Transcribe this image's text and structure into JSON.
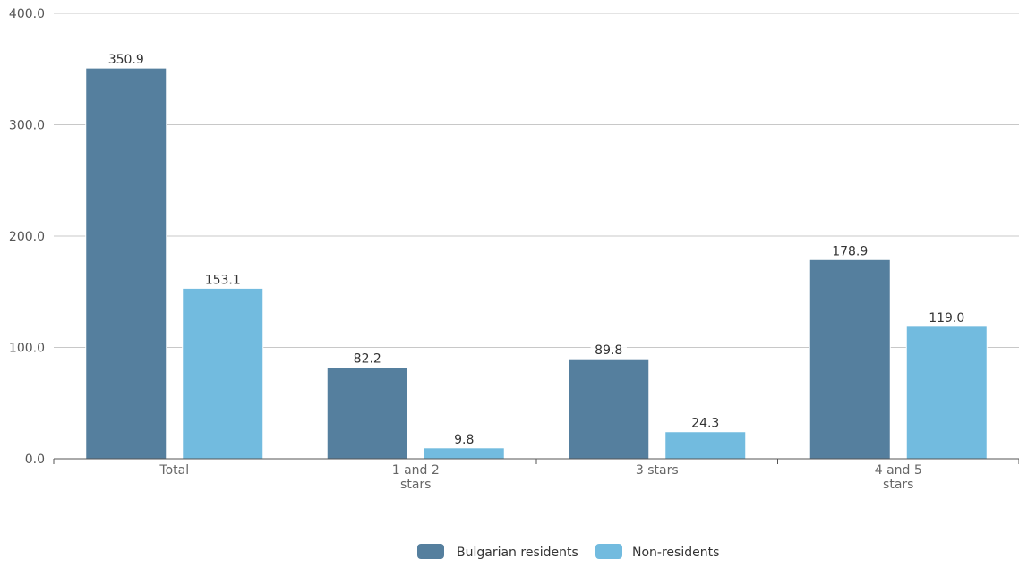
{
  "chart_data": {
    "type": "bar",
    "categories": [
      [
        "Total"
      ],
      [
        "1 and 2",
        "stars"
      ],
      [
        "3 stars"
      ],
      [
        "4 and 5",
        "stars"
      ]
    ],
    "series": [
      {
        "name": "Bulgarian residents",
        "color": "#557f9e",
        "values": [
          350.9,
          82.2,
          89.8,
          178.9
        ],
        "labels": [
          "350.9",
          "82.2",
          "89.8",
          "178.9"
        ]
      },
      {
        "name": "Non-residents",
        "color": "#72bbdf",
        "values": [
          153.1,
          9.8,
          24.3,
          119.0
        ],
        "labels": [
          "153.1",
          "9.8",
          "24.3",
          "119.0"
        ]
      }
    ],
    "yticks": [
      0,
      100,
      200,
      300,
      400
    ],
    "ytick_labels": [
      "0.0",
      "100.0",
      "200.0",
      "300.0",
      "400.0"
    ],
    "ylim": [
      0,
      400
    ],
    "title": "",
    "xlabel": "",
    "ylabel": "",
    "grid": true,
    "legend_position": "bottom-center"
  }
}
